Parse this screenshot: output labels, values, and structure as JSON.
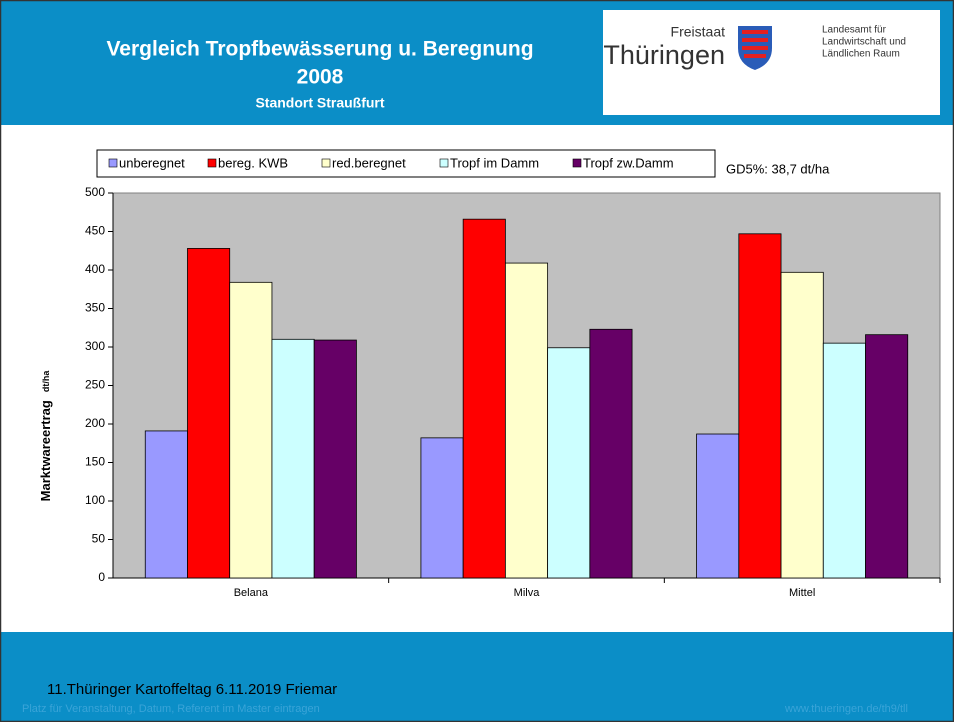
{
  "header": {
    "title": [
      "Vergleich Tropfbewässerung u. Beregnung",
      "2008"
    ],
    "subtitle": "Standort Straußfurt",
    "logo": {
      "top": "Freistaat",
      "name": "Thüringen",
      "lines": [
        "Landesamt für",
        "Landwirtschaft und",
        "Ländlichen Raum"
      ]
    }
  },
  "footer": {
    "event": "11.Thüringer Kartoffeltag 6.11.2019 Friemar",
    "placeholder": "Platz für Veranstaltung, Datum, Referent im Master eintragen",
    "url": "www.thueringen.de/th9/tll"
  },
  "chart_data": {
    "type": "bar",
    "ylabel": "Marktwareertrag",
    "ylabel_unit": "dt/ha",
    "annotation": "GD5%: 38,7 dt/ha",
    "categories": [
      "Belana",
      "Milva",
      "Mittel"
    ],
    "series": [
      {
        "name": "unberegnet",
        "color": "#9999ff",
        "values": [
          191,
          182,
          187
        ]
      },
      {
        "name": "bereg. KWB",
        "color": "#ff0000",
        "values": [
          428,
          466,
          447
        ]
      },
      {
        "name": "red.beregnet",
        "color": "#ffffcc",
        "values": [
          384,
          409,
          397
        ]
      },
      {
        "name": "Tropf im Damm",
        "color": "#ccffff",
        "values": [
          310,
          299,
          305
        ]
      },
      {
        "name": "Tropf zw.Damm",
        "color": "#660066",
        "values": [
          309,
          323,
          316
        ]
      }
    ],
    "ylim": [
      0,
      500
    ],
    "yticks": [
      0,
      50,
      100,
      150,
      200,
      250,
      300,
      350,
      400,
      450,
      500
    ],
    "grid": false,
    "plot_background": "#c0c0c0"
  }
}
